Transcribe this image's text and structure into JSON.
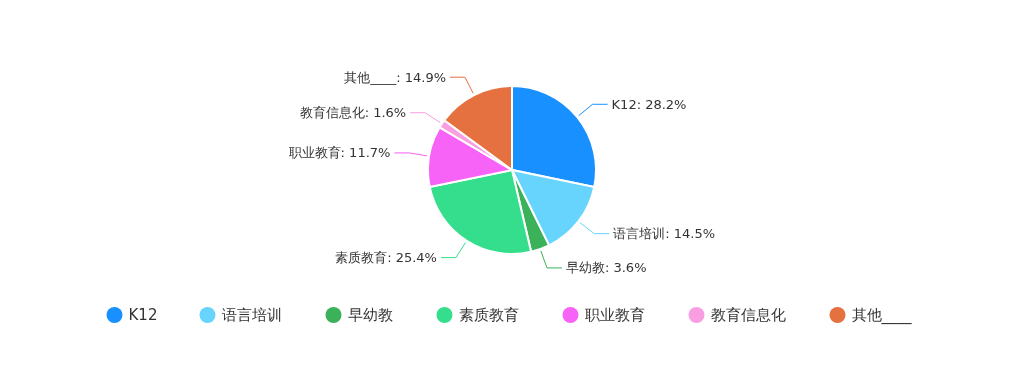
{
  "chart_data": {
    "type": "pie",
    "categories": [
      "K12",
      "语言培训",
      "早幼教",
      "素质教育",
      "职业教育",
      "教育信息化",
      "其他____"
    ],
    "values": [
      28.2,
      14.5,
      3.6,
      25.4,
      11.7,
      1.6,
      14.9
    ],
    "value_labels": [
      "K12: 28.2%",
      "语言培训: 14.5%",
      "早幼教: 3.6%",
      "素质教育: 25.4%",
      "职业教育: 11.7%",
      "教育信息化: 1.6%",
      "其他____: 14.9%"
    ],
    "colors": [
      "#1890ff",
      "#67d4fd",
      "#3bb15a",
      "#35de8c",
      "#f763f7",
      "#f99ee1",
      "#e57040"
    ],
    "legend": "bottom"
  }
}
